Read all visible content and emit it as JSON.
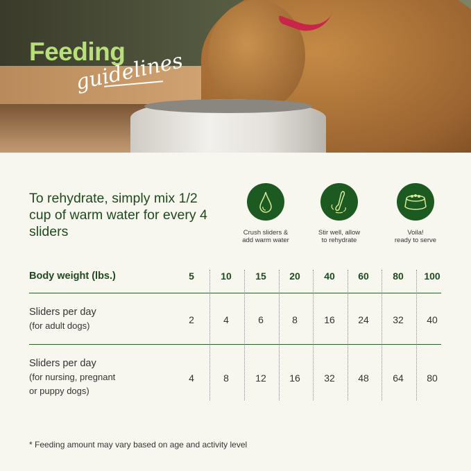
{
  "hero": {
    "title_main": "Feeding",
    "title_script": "guidelines"
  },
  "intro": "To rehydrate, simply mix 1/2 cup of warm water for every 4 sliders",
  "steps": [
    {
      "icon": "water-drop-icon",
      "caption_1": "Crush sliders &",
      "caption_2": "add warm water"
    },
    {
      "icon": "spoon-stir-icon",
      "caption_1": "Stir well, allow",
      "caption_2": "to rehydrate"
    },
    {
      "icon": "food-bowl-icon",
      "caption_1": "Voila!",
      "caption_2": "ready to serve"
    }
  ],
  "table": {
    "header_label": "Body weight (lbs.)",
    "weights": [
      "5",
      "10",
      "15",
      "20",
      "40",
      "60",
      "80",
      "100"
    ],
    "rows": [
      {
        "label": "Sliders per day",
        "sub_1": "(for adult dogs)",
        "sub_2": "",
        "values": [
          "2",
          "4",
          "6",
          "8",
          "16",
          "24",
          "32",
          "40"
        ]
      },
      {
        "label": "Sliders per day",
        "sub_1": "(for nursing, pregnant",
        "sub_2": "or puppy dogs)",
        "values": [
          "4",
          "8",
          "12",
          "16",
          "32",
          "48",
          "64",
          "80"
        ]
      }
    ]
  },
  "footnote": "* Feeding amount may vary based on age and activity level",
  "colors": {
    "accent_green": "#1d5a22",
    "title_green": "#b8e07a",
    "text_green": "#1e4a1e",
    "background": "#f7f6ef"
  }
}
